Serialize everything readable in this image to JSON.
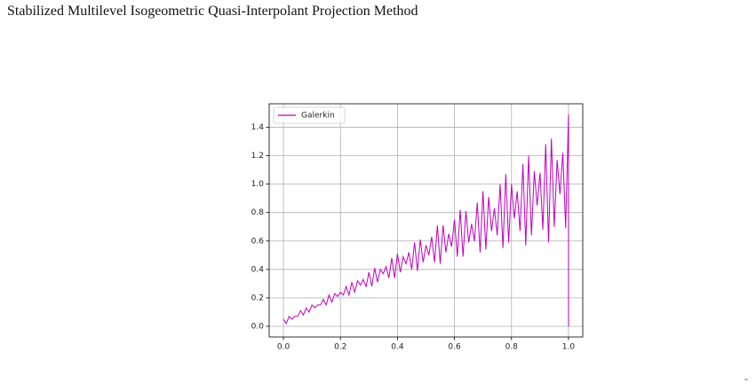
{
  "page_title": "Stabilized Multilevel Isogeometric Quasi-Interpolant Projection Method",
  "chart_data": {
    "type": "line",
    "x": [
      0,
      0.01,
      0.02,
      0.03,
      0.04,
      0.05,
      0.06,
      0.07,
      0.08,
      0.09,
      0.1,
      0.11,
      0.12,
      0.13,
      0.14,
      0.15,
      0.16,
      0.17,
      0.18,
      0.19,
      0.2,
      0.21,
      0.22,
      0.23,
      0.24,
      0.25,
      0.26,
      0.27,
      0.28,
      0.29,
      0.3,
      0.31,
      0.32,
      0.33,
      0.34,
      0.35,
      0.36,
      0.37,
      0.38,
      0.39,
      0.4,
      0.41,
      0.42,
      0.43,
      0.44,
      0.45,
      0.46,
      0.47,
      0.48,
      0.49,
      0.5,
      0.51,
      0.52,
      0.53,
      0.54,
      0.55,
      0.56,
      0.57,
      0.58,
      0.59,
      0.6,
      0.61,
      0.62,
      0.63,
      0.64,
      0.65,
      0.66,
      0.67,
      0.68,
      0.69,
      0.7,
      0.71,
      0.72,
      0.73,
      0.74,
      0.75,
      0.76,
      0.77,
      0.78,
      0.79,
      0.8,
      0.81,
      0.82,
      0.83,
      0.84,
      0.85,
      0.86,
      0.87,
      0.88,
      0.89,
      0.9,
      0.91,
      0.92,
      0.93,
      0.94,
      0.95,
      0.96,
      0.97,
      0.98,
      0.99,
      1.0,
      1.0
    ],
    "series": [
      {
        "name": "Galerkin",
        "color": "#bf00bf",
        "values": [
          0.05,
          0.02,
          0.07,
          0.05,
          0.07,
          0.07,
          0.11,
          0.08,
          0.13,
          0.1,
          0.15,
          0.13,
          0.15,
          0.15,
          0.19,
          0.15,
          0.22,
          0.17,
          0.23,
          0.21,
          0.24,
          0.22,
          0.28,
          0.22,
          0.31,
          0.24,
          0.32,
          0.29,
          0.33,
          0.28,
          0.38,
          0.28,
          0.41,
          0.31,
          0.4,
          0.37,
          0.42,
          0.34,
          0.48,
          0.34,
          0.51,
          0.38,
          0.49,
          0.44,
          0.52,
          0.4,
          0.59,
          0.39,
          0.61,
          0.45,
          0.57,
          0.5,
          0.63,
          0.45,
          0.71,
          0.44,
          0.71,
          0.52,
          0.65,
          0.56,
          0.75,
          0.49,
          0.82,
          0.49,
          0.81,
          0.59,
          0.72,
          0.6,
          0.87,
          0.52,
          0.95,
          0.54,
          0.91,
          0.67,
          0.83,
          0.64,
          1.0,
          0.55,
          1.07,
          0.59,
          1.0,
          0.76,
          0.95,
          0.67,
          1.14,
          0.57,
          1.2,
          0.64,
          1.09,
          0.85,
          1.08,
          0.68,
          1.28,
          0.59,
          1.32,
          0.7,
          1.17,
          0.93,
          1.22,
          0.69,
          1.49,
          0.0
        ]
      }
    ],
    "xlim": [
      -0.05,
      1.05
    ],
    "ylim": [
      -0.075,
      1.565
    ],
    "xticks": [
      {
        "value": 0,
        "label": "0.0"
      },
      {
        "value": 0.2,
        "label": "0.2"
      },
      {
        "value": 0.4,
        "label": "0.4"
      },
      {
        "value": 0.6,
        "label": "0.6"
      },
      {
        "value": 0.8,
        "label": "0.8"
      },
      {
        "value": 1,
        "label": "1.0"
      }
    ],
    "yticks": [
      {
        "value": 0,
        "label": "0.0"
      },
      {
        "value": 0.2,
        "label": "0.2"
      },
      {
        "value": 0.4,
        "label": "0.4"
      },
      {
        "value": 0.6,
        "label": "0.6"
      },
      {
        "value": 0.8,
        "label": "0.8"
      },
      {
        "value": 1,
        "label": "1.0"
      },
      {
        "value": 1.2,
        "label": "1.2"
      },
      {
        "value": 1.4,
        "label": "1.4"
      }
    ],
    "grid": true,
    "legend": "upper left"
  }
}
